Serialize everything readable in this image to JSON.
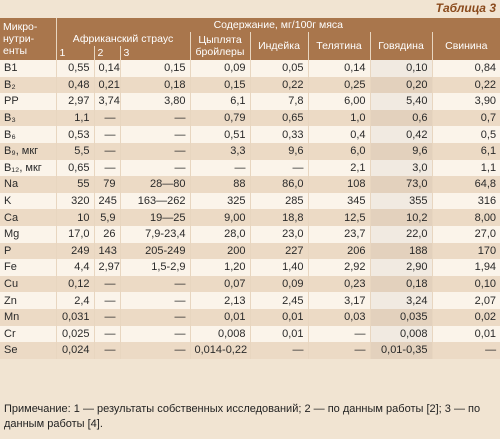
{
  "header": {
    "title": "Таблица 3"
  },
  "table": {
    "corner": "Микро-нутри-енты",
    "group": "Содержание, мг/100г мяса",
    "subgroup": "Африканский страус",
    "subcols": [
      "1",
      "2",
      "3"
    ],
    "columns": [
      "Цыплята бройлеры",
      "Индейка",
      "Телятина",
      "Говядина",
      "Свинина"
    ],
    "rows": [
      [
        "B1",
        "0,55",
        "0,14",
        "0,15",
        "0,09",
        "0,05",
        "0,14",
        "0,10",
        "0,84"
      ],
      [
        "B₂",
        "0,48",
        "0,21",
        "0,18",
        "0,15",
        "0,22",
        "0,25",
        "0,20",
        "0,22"
      ],
      [
        "PP",
        "2,97",
        "3,74",
        "3,80",
        "6,1",
        "7,8",
        "6,00",
        "5,40",
        "3,90"
      ],
      [
        "B₃",
        "1,1",
        "—",
        "—",
        "0,79",
        "0,65",
        "1,0",
        "0,6",
        "0,7"
      ],
      [
        "B₆",
        "0,53",
        "—",
        "—",
        "0,51",
        "0,33",
        "0,4",
        "0,42",
        "0,5"
      ],
      [
        "B₉, мкг",
        "5,5",
        "—",
        "—",
        "3,3",
        "9,6",
        "6,0",
        "9,6",
        "6,1"
      ],
      [
        "B₁₂, мкг",
        "0,65",
        "—",
        "—",
        "—",
        "—",
        "2,1",
        "3,0",
        "1,1"
      ],
      [
        "Na",
        "55",
        "79",
        "28—80",
        "88",
        "86,0",
        "108",
        "73,0",
        "64,8"
      ],
      [
        "K",
        "320",
        "245",
        "163—262",
        "325",
        "285",
        "345",
        "355",
        "316"
      ],
      [
        "Ca",
        "10",
        "5,9",
        "19—25",
        "9,00",
        "18,8",
        "12,5",
        "10,2",
        "8,00"
      ],
      [
        "Mg",
        "17,0",
        "26",
        "7,9-23,4",
        "28,0",
        "23,0",
        "23,7",
        "22,0",
        "27,0"
      ],
      [
        "P",
        "249",
        "143",
        "205-249",
        "200",
        "227",
        "206",
        "188",
        "170"
      ],
      [
        "Fe",
        "4,4",
        "2,97",
        "1,5-2,9",
        "1,20",
        "1,40",
        "2,92",
        "2,90",
        "1,94"
      ],
      [
        "Cu",
        "0,12",
        "—",
        "—",
        "0,07",
        "0,09",
        "0,23",
        "0,18",
        "0,10"
      ],
      [
        "Zn",
        "2,4",
        "—",
        "—",
        "2,13",
        "2,45",
        "3,17",
        "3,24",
        "2,07"
      ],
      [
        "Mn",
        "0,031",
        "—",
        "—",
        "0,01",
        "0,01",
        "0,03",
        "0,035",
        "0,02"
      ],
      [
        "Cr",
        "0,025",
        "—",
        "—",
        "0,008",
        "0,01",
        "—",
        "0,008",
        "0,01"
      ],
      [
        "Se",
        "0,024",
        "—",
        "—",
        "0,014-0,22",
        "—",
        "—",
        "0,01-0,35",
        "—"
      ]
    ]
  },
  "note": "Примечание: 1 — результаты собственных исследований; 2 — по данным работы [2]; 3 — по данным работы [4]."
}
